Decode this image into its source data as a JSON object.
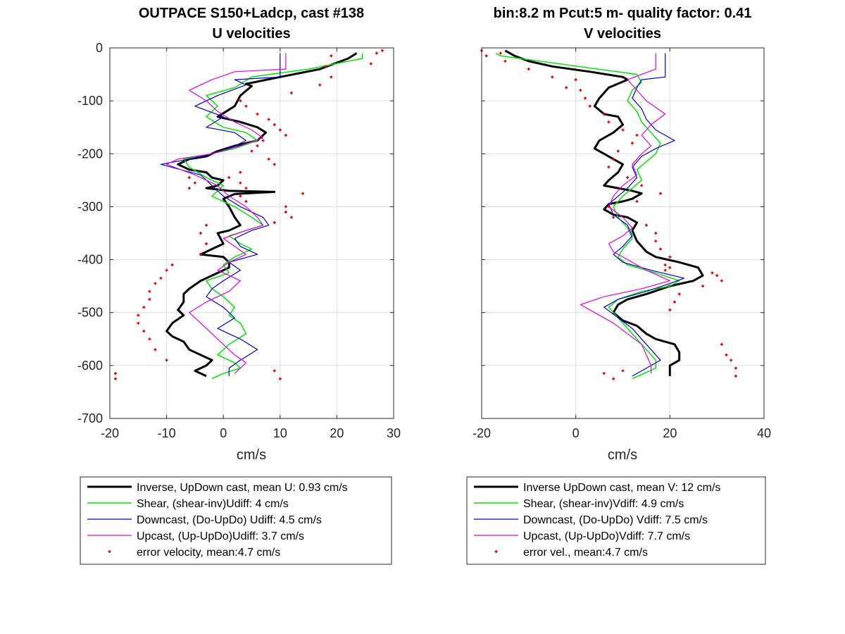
{
  "chart_data": [
    {
      "type": "line",
      "title": "OUTPACE S150+Ladcp, cast #138",
      "subtitle": "U velocities",
      "xlabel": "cm/s",
      "ylabel": "",
      "xlim": [
        -20,
        30
      ],
      "ylim": [
        -700,
        0
      ],
      "xticks": [
        -20,
        -10,
        0,
        10,
        20,
        30
      ],
      "yticks": [
        0,
        -100,
        -200,
        -300,
        -400,
        -500,
        -600,
        -700
      ],
      "xtick_labels": [
        "-20",
        "-10",
        "0",
        "10",
        "20",
        "30"
      ],
      "ytick_labels": [
        "0",
        "-100",
        "-200",
        "-300",
        "-400",
        "-500",
        "-600",
        "-700"
      ],
      "grid": true,
      "legend_position": "below",
      "series": [
        {
          "name": "Inverse, UpDown cast, mean U:  0.93 cm/s",
          "color": "#000000",
          "width": 3,
          "style": "line",
          "x": [
            23.5,
            22,
            17,
            10,
            4,
            5,
            3,
            2,
            -1,
            1,
            3,
            6,
            7.5,
            6,
            2,
            -1,
            -3,
            -6,
            -8,
            -6,
            -3,
            -2,
            0,
            -1,
            -3,
            1,
            9,
            2,
            0,
            1,
            2,
            3,
            1,
            -1,
            0,
            -2,
            -4,
            0,
            1,
            1,
            0,
            -2,
            -4,
            -6,
            -7,
            -7,
            -8,
            -7,
            -9,
            -10,
            -9,
            -7,
            -6,
            -4,
            -2,
            -3,
            -5,
            -4,
            -3
          ],
          "y": [
            -10,
            -20,
            -40,
            -55,
            -68,
            -72,
            -90,
            -110,
            -130,
            -135,
            -140,
            -150,
            -160,
            -175,
            -185,
            -195,
            -205,
            -210,
            -220,
            -230,
            -235,
            -245,
            -250,
            -260,
            -265,
            -270,
            -272,
            -276,
            -285,
            -300,
            -320,
            -335,
            -345,
            -350,
            -370,
            -380,
            -390,
            -395,
            -405,
            -415,
            -420,
            -430,
            -440,
            -455,
            -465,
            -480,
            -495,
            -505,
            -520,
            -535,
            -545,
            -555,
            -570,
            -580,
            -590,
            -600,
            -610,
            -615,
            -620
          ]
        },
        {
          "name": "Shear, (shear-inv)Udiff:  4 cm/s",
          "color": "#00e600",
          "width": 1.5,
          "style": "line",
          "x": [
            24.5,
            24.5,
            15,
            5,
            2,
            -3,
            -1,
            -3,
            0,
            4,
            6,
            2,
            -2,
            -7,
            -6,
            -3,
            0,
            -2,
            2,
            5,
            7,
            4,
            1,
            3,
            5,
            2,
            0,
            1,
            -3,
            -2,
            0,
            2,
            1,
            3,
            4,
            1,
            -1,
            2,
            3,
            0,
            -2
          ],
          "y": [
            -10,
            -20,
            -40,
            -55,
            -75,
            -90,
            -110,
            -130,
            -150,
            -160,
            -175,
            -190,
            -200,
            -210,
            -225,
            -245,
            -260,
            -280,
            -300,
            -320,
            -335,
            -345,
            -355,
            -370,
            -380,
            -395,
            -410,
            -425,
            -440,
            -455,
            -470,
            -490,
            -505,
            -520,
            -540,
            -560,
            -580,
            -595,
            -605,
            -615,
            -625
          ]
        },
        {
          "name": "Downcast, (Do-UpDo) Udiff:  4.5 cm/s",
          "color": "#0000cc",
          "width": 1.2,
          "style": "line",
          "x": [
            10,
            10,
            10,
            2,
            4,
            -1,
            -5,
            0,
            -3,
            2,
            4,
            1,
            -2,
            -6,
            -11,
            -4,
            -2,
            0,
            3,
            7,
            8,
            5,
            2,
            3,
            6,
            1,
            3,
            0,
            -2,
            -3,
            0,
            2,
            -1,
            3,
            6,
            3,
            1,
            1
          ],
          "y": [
            -10,
            -30,
            -55,
            -60,
            -70,
            -90,
            -110,
            -130,
            -150,
            -160,
            -175,
            -190,
            -200,
            -210,
            -220,
            -240,
            -260,
            -280,
            -300,
            -320,
            -335,
            -345,
            -360,
            -375,
            -390,
            -405,
            -420,
            -440,
            -455,
            -470,
            -490,
            -510,
            -530,
            -550,
            -570,
            -590,
            -605,
            -620
          ]
        },
        {
          "name": "Upcast, (Up-UpDo)Udiff:  3.7 cm/s",
          "color": "#e600e6",
          "width": 1.2,
          "style": "line",
          "x": [
            11,
            11,
            11,
            2,
            -2,
            -6,
            -3,
            -1,
            2,
            5,
            7,
            3,
            -2,
            -8,
            -10,
            -5,
            -1,
            1,
            4,
            6,
            7,
            4,
            0,
            2,
            4,
            1,
            -1,
            3,
            1,
            -3,
            -6,
            -4,
            -2,
            0,
            2,
            4,
            3,
            2
          ],
          "y": [
            -10,
            -30,
            -40,
            -45,
            -60,
            -80,
            -100,
            -120,
            -140,
            -155,
            -170,
            -185,
            -200,
            -210,
            -220,
            -240,
            -260,
            -280,
            -300,
            -320,
            -335,
            -345,
            -360,
            -375,
            -390,
            -405,
            -420,
            -440,
            -460,
            -480,
            -500,
            -520,
            -540,
            -560,
            -580,
            -595,
            -605,
            -615
          ]
        },
        {
          "name": "error velocity, mean:4.7 cm/s",
          "color": "#e60000",
          "style": "points",
          "x": [
            28,
            27,
            26,
            19,
            18,
            19,
            17,
            12,
            3,
            4,
            6,
            8,
            9,
            10,
            11,
            7,
            6,
            5,
            8,
            9,
            3,
            1,
            3,
            4,
            -6,
            -5,
            -6,
            3,
            4,
            14,
            11,
            11,
            12,
            9,
            -3,
            -4,
            -3,
            -4,
            -9,
            -10,
            -11,
            -12,
            -13,
            -13,
            -14,
            -15,
            -15,
            -14,
            -13,
            -12,
            -10,
            -19,
            -19,
            9,
            10
          ],
          "y": [
            -5,
            -10,
            -30,
            -15,
            -35,
            -55,
            -70,
            -85,
            -100,
            -110,
            -125,
            -135,
            -145,
            -155,
            -165,
            -175,
            -185,
            -195,
            -210,
            -220,
            -235,
            -245,
            -255,
            -265,
            -245,
            -255,
            -265,
            -280,
            -290,
            -275,
            -300,
            -310,
            -320,
            -330,
            -335,
            -350,
            -370,
            -390,
            -410,
            -420,
            -435,
            -445,
            -460,
            -475,
            -490,
            -505,
            -520,
            -535,
            -550,
            -570,
            -590,
            -615,
            -625,
            -610,
            -625
          ]
        }
      ]
    },
    {
      "type": "line",
      "title": "bin:8.2 m  Pcut:5 m- quality factor:  0.41",
      "subtitle": "V velocities",
      "xlabel": "cm/s",
      "ylabel": "",
      "xlim": [
        -20,
        40
      ],
      "ylim": [
        -700,
        0
      ],
      "xticks": [
        -20,
        0,
        20,
        40
      ],
      "yticks": [
        0,
        -100,
        -200,
        -300,
        -400,
        -500,
        -600,
        -700
      ],
      "xtick_labels": [
        "-20",
        "0",
        "20",
        "40"
      ],
      "ytick_labels": [],
      "grid": true,
      "legend_position": "below",
      "series": [
        {
          "name": "Inverse UpDown cast, mean V:  12 cm/s",
          "color": "#000000",
          "width": 3,
          "style": "line",
          "x": [
            -15,
            -13,
            -10,
            -5,
            3,
            10,
            11,
            7,
            5,
            4,
            6,
            9,
            10,
            8,
            5,
            4,
            6,
            8,
            10,
            9,
            7,
            6,
            9,
            12,
            14,
            12,
            10,
            7,
            6,
            8,
            11,
            13,
            12,
            13,
            14,
            15,
            17,
            22,
            26,
            27,
            25,
            20,
            15,
            11,
            9,
            8,
            10,
            13,
            15,
            17,
            21,
            22,
            22,
            20,
            20
          ],
          "y": [
            -5,
            -15,
            -25,
            -35,
            -45,
            -55,
            -60,
            -75,
            -95,
            -110,
            -125,
            -130,
            -145,
            -160,
            -175,
            -190,
            -200,
            -210,
            -220,
            -235,
            -250,
            -260,
            -265,
            -270,
            -275,
            -285,
            -290,
            -295,
            -305,
            -315,
            -320,
            -330,
            -345,
            -365,
            -375,
            -385,
            -395,
            -405,
            -415,
            -430,
            -440,
            -450,
            -465,
            -475,
            -485,
            -500,
            -515,
            -525,
            -540,
            -550,
            -560,
            -575,
            -590,
            -600,
            -620
          ]
        },
        {
          "name": "Shear, (shear-inv)Vdiff:  4.9 cm/s",
          "color": "#00e600",
          "width": 1.5,
          "style": "line",
          "x": [
            -17,
            -16,
            13,
            14,
            12,
            11,
            13,
            14,
            16,
            18,
            17,
            15,
            13,
            14,
            12,
            10,
            8,
            9,
            11,
            12,
            10,
            9,
            11,
            17,
            22,
            20,
            14,
            9,
            7,
            9,
            11,
            13,
            15,
            17,
            17,
            12
          ],
          "y": [
            -10,
            -15,
            -50,
            -65,
            -80,
            -100,
            -120,
            -140,
            -160,
            -180,
            -200,
            -215,
            -230,
            -250,
            -265,
            -280,
            -300,
            -320,
            -340,
            -360,
            -380,
            -395,
            -410,
            -425,
            -440,
            -450,
            -460,
            -475,
            -490,
            -510,
            -530,
            -550,
            -570,
            -590,
            -605,
            -625
          ]
        },
        {
          "name": "Downcast, (Do-UpDo) Vdiff:  7.5 cm/s",
          "color": "#0000cc",
          "width": 1.2,
          "style": "line",
          "x": [
            19,
            19,
            19,
            14,
            13,
            12,
            14,
            15,
            17,
            21,
            17,
            14,
            12,
            13,
            11,
            9,
            7,
            8,
            11,
            12,
            10,
            8,
            10,
            16,
            23,
            20,
            15,
            9,
            6,
            9,
            12,
            14,
            16,
            18,
            15,
            12
          ],
          "y": [
            -10,
            -40,
            -55,
            -60,
            -75,
            -95,
            -115,
            -135,
            -155,
            -175,
            -190,
            -205,
            -225,
            -245,
            -265,
            -280,
            -295,
            -315,
            -335,
            -355,
            -375,
            -390,
            -405,
            -420,
            -435,
            -445,
            -460,
            -475,
            -490,
            -510,
            -530,
            -550,
            -570,
            -590,
            -605,
            -620
          ]
        },
        {
          "name": "Upcast, (Up-UpDo)Vdiff:  7.7 cm/s",
          "color": "#e600e6",
          "width": 1.2,
          "style": "line",
          "x": [
            17,
            17,
            17,
            14,
            11,
            13,
            15,
            19,
            16,
            14,
            16,
            14,
            12,
            13,
            10,
            8,
            7,
            10,
            12,
            10,
            7,
            8,
            11,
            15,
            20,
            14,
            6,
            1,
            4,
            8,
            11,
            14,
            15,
            16,
            16
          ],
          "y": [
            -10,
            -25,
            -40,
            -50,
            -60,
            -80,
            -100,
            -125,
            -145,
            -165,
            -185,
            -200,
            -220,
            -240,
            -260,
            -280,
            -300,
            -320,
            -340,
            -355,
            -370,
            -385,
            -400,
            -420,
            -440,
            -455,
            -470,
            -485,
            -500,
            -520,
            -540,
            -560,
            -580,
            -600,
            -615
          ]
        },
        {
          "name": "error vel., mean:4.7 cm/s",
          "color": "#e60000",
          "style": "points",
          "x": [
            -20,
            -19,
            -16,
            -15,
            -10,
            -5,
            0,
            -2,
            1,
            2,
            3,
            6,
            7,
            10,
            13,
            12,
            9,
            8,
            7,
            11,
            14,
            18,
            13,
            7,
            8,
            15,
            17,
            17,
            18,
            20,
            19,
            19,
            20,
            30,
            31,
            29,
            27,
            22,
            21,
            20,
            31,
            32,
            33,
            34,
            34,
            6,
            8,
            10
          ],
          "y": [
            -5,
            -15,
            -10,
            -25,
            -40,
            -55,
            -60,
            -75,
            -80,
            -95,
            -110,
            -125,
            -140,
            -155,
            -165,
            -180,
            -195,
            -210,
            -225,
            -245,
            -260,
            -275,
            -290,
            -300,
            -320,
            -335,
            -350,
            -365,
            -380,
            -395,
            -410,
            -420,
            -415,
            -430,
            -440,
            -425,
            -450,
            -465,
            -480,
            -495,
            -560,
            -580,
            -590,
            -605,
            -620,
            -615,
            -625,
            -610
          ]
        }
      ]
    }
  ]
}
